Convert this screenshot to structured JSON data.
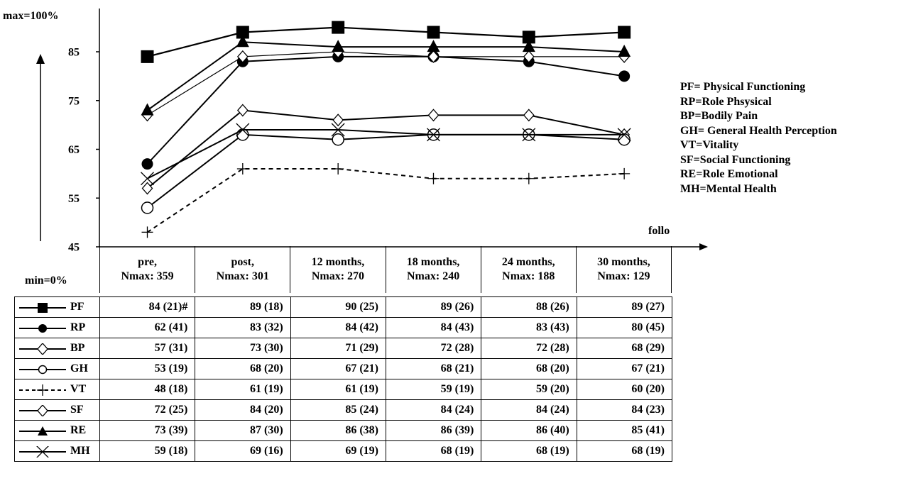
{
  "chart_data": {
    "type": "line",
    "y_top_label": "max=100%",
    "y_bottom_label": "min=0%",
    "yticks": [
      45,
      55,
      65,
      75,
      85
    ],
    "ylim": [
      45,
      93
    ],
    "x_axis_partial_label": "follo",
    "categories": [
      {
        "line1": "pre,",
        "line2": "Nmax: 359"
      },
      {
        "line1": "post,",
        "line2": "Nmax: 301"
      },
      {
        "line1": "12 months,",
        "line2": "Nmax: 270"
      },
      {
        "line1": "18 months,",
        "line2": "Nmax: 240"
      },
      {
        "line1": "24 months,",
        "line2": "Nmax: 188"
      },
      {
        "line1": "30 months,",
        "line2": "Nmax: 129"
      }
    ],
    "series": [
      {
        "name": "PF",
        "marker": "filled-square",
        "dash": false,
        "values": [
          84,
          89,
          90,
          89,
          88,
          89
        ],
        "sd": [
          "(21)#",
          "(18)",
          "(25)",
          "(26)",
          "(26)",
          "(27)"
        ]
      },
      {
        "name": "RP",
        "marker": "filled-circle",
        "dash": false,
        "values": [
          62,
          83,
          84,
          84,
          83,
          80
        ],
        "sd": [
          "(41)",
          "(32)",
          "(42)",
          "(43)",
          "(43)",
          "(45)"
        ]
      },
      {
        "name": "BP",
        "marker": "open-diamond",
        "dash": false,
        "values": [
          57,
          73,
          71,
          72,
          72,
          68
        ],
        "sd": [
          "(31)",
          "(30)",
          "(29)",
          "(28)",
          "(28)",
          "(29)"
        ]
      },
      {
        "name": "GH",
        "marker": "open-circle",
        "dash": false,
        "values": [
          53,
          68,
          67,
          68,
          68,
          67
        ],
        "sd": [
          "(19)",
          "(20)",
          "(21)",
          "(21)",
          "(20)",
          "(21)"
        ]
      },
      {
        "name": "VT",
        "marker": "plus",
        "dash": true,
        "values": [
          48,
          61,
          61,
          59,
          59,
          60
        ],
        "sd": [
          "(18)",
          "(19)",
          "(19)",
          "(19)",
          "(20)",
          "(20)"
        ]
      },
      {
        "name": "SF",
        "marker": "open-diamond-thin",
        "dash": false,
        "values": [
          72,
          84,
          85,
          84,
          84,
          84
        ],
        "sd": [
          "(25)",
          "(20)",
          "(24)",
          "(24)",
          "(24)",
          "(23)"
        ]
      },
      {
        "name": "RE",
        "marker": "filled-triangle",
        "dash": false,
        "values": [
          73,
          87,
          86,
          86,
          86,
          85
        ],
        "sd": [
          "(39)",
          "(30)",
          "(38)",
          "(39)",
          "(40)",
          "(41)"
        ]
      },
      {
        "name": "MH",
        "marker": "x",
        "dash": false,
        "values": [
          59,
          69,
          69,
          68,
          68,
          68
        ],
        "sd": [
          "(18)",
          "(16)",
          "(19)",
          "(19)",
          "(19)",
          "(19)"
        ]
      }
    ],
    "legend": [
      "PF= Physical Functioning",
      "RP=Role Phsysical",
      "BP=Bodily Pain",
      "GH= General Health  Perception",
      "VT=Vitality",
      "SF=Social Functioning",
      "RE=Role Emotional",
      "MH=Mental Health"
    ]
  }
}
